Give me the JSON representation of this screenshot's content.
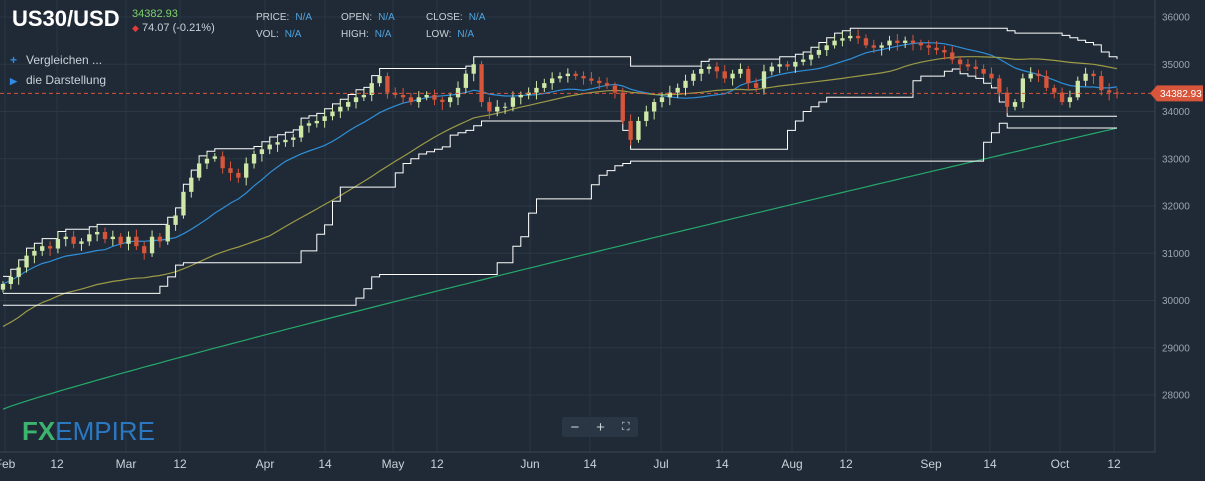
{
  "header": {
    "symbol": "US30/USD",
    "last_price": "34382.93",
    "change": "74.07 (-0.21%)",
    "change_direction": "down",
    "fields": [
      {
        "label": "PRICE:",
        "value": "N/A"
      },
      {
        "label": "OPEN:",
        "value": "N/A"
      },
      {
        "label": "CLOSE:",
        "value": "N/A"
      },
      {
        "label": "VOL:",
        "value": "N/A"
      },
      {
        "label": "HIGH:",
        "value": "N/A"
      },
      {
        "label": "LOW:",
        "value": "N/A"
      }
    ]
  },
  "tools": {
    "compare_label": "Vergleichen ...",
    "display_label": "die Darstellung"
  },
  "logo": {
    "text_fx": "FX",
    "text_empire": "EMPIRE"
  },
  "zoom": {
    "minus": "−",
    "plus": "+",
    "fit": "⛶"
  },
  "colors": {
    "background": "#1f2a36",
    "up_candle": "#cfe8a8",
    "down_candle": "#d7553a",
    "channel": "#ffffff",
    "ma_fast": "#2f8fd8",
    "ma_mid": "#9c9a45",
    "ma_slow": "#26a96b",
    "price_marker": "#d7553a",
    "logo_green": "#3db46d",
    "logo_blue": "#2b78c2"
  },
  "chart_data": {
    "type": "candlestick",
    "title": "US30/USD",
    "x_tick_labels": [
      "Feb",
      "12",
      "Mar",
      "12",
      "Apr",
      "14",
      "May",
      "12",
      "Jun",
      "14",
      "Jul",
      "14",
      "Aug",
      "12",
      "Sep",
      "14",
      "Oct",
      "12"
    ],
    "y_tick_labels": [
      "36000",
      "35000",
      "34000",
      "33000",
      "32000",
      "31000",
      "30000",
      "29000",
      "28000"
    ],
    "ylim": [
      26800,
      36300
    ],
    "last_price_marker": 34382.93,
    "grid": true,
    "series": [
      {
        "kind": "candles",
        "start_date": "2021-02-01",
        "step_days": 1.45,
        "close": [
          30350,
          30500,
          30700,
          30950,
          31050,
          31150,
          31100,
          31300,
          31350,
          31200,
          31250,
          31400,
          31450,
          31300,
          31350,
          31200,
          31350,
          31150,
          31000,
          31350,
          31250,
          31600,
          31800,
          32300,
          32600,
          32900,
          33000,
          33050,
          32800,
          32700,
          32600,
          32900,
          33100,
          33200,
          33300,
          33350,
          33400,
          33450,
          33700,
          33750,
          33800,
          33900,
          34000,
          34100,
          34200,
          34300,
          34350,
          34600,
          34750,
          34400,
          34350,
          34300,
          34200,
          34300,
          34350,
          34250,
          34200,
          34300,
          34500,
          34800,
          35000,
          34200,
          34000,
          34100,
          34100,
          34300,
          34350,
          34400,
          34500,
          34600,
          34700,
          34750,
          34800,
          34750,
          34700,
          34650,
          34600,
          34550,
          34400,
          33800,
          33400,
          33800,
          34000,
          34200,
          34300,
          34400,
          34500,
          34650,
          34800,
          34900,
          34950,
          34850,
          34700,
          34800,
          34900,
          34600,
          34500,
          34850,
          34950,
          35000,
          34950,
          35050,
          35100,
          35200,
          35300,
          35400,
          35500,
          35550,
          35600,
          35550,
          35400,
          35350,
          35400,
          35500,
          35450,
          35500,
          35450,
          35400,
          35350,
          35300,
          35250,
          35100,
          35000,
          34950,
          34900,
          34800,
          34700,
          34400,
          34100,
          34200,
          34700,
          34800,
          34750,
          34500,
          34400,
          34200,
          34300,
          34650,
          34800,
          34750,
          34450,
          34400,
          34382.93
        ]
      }
    ]
  }
}
